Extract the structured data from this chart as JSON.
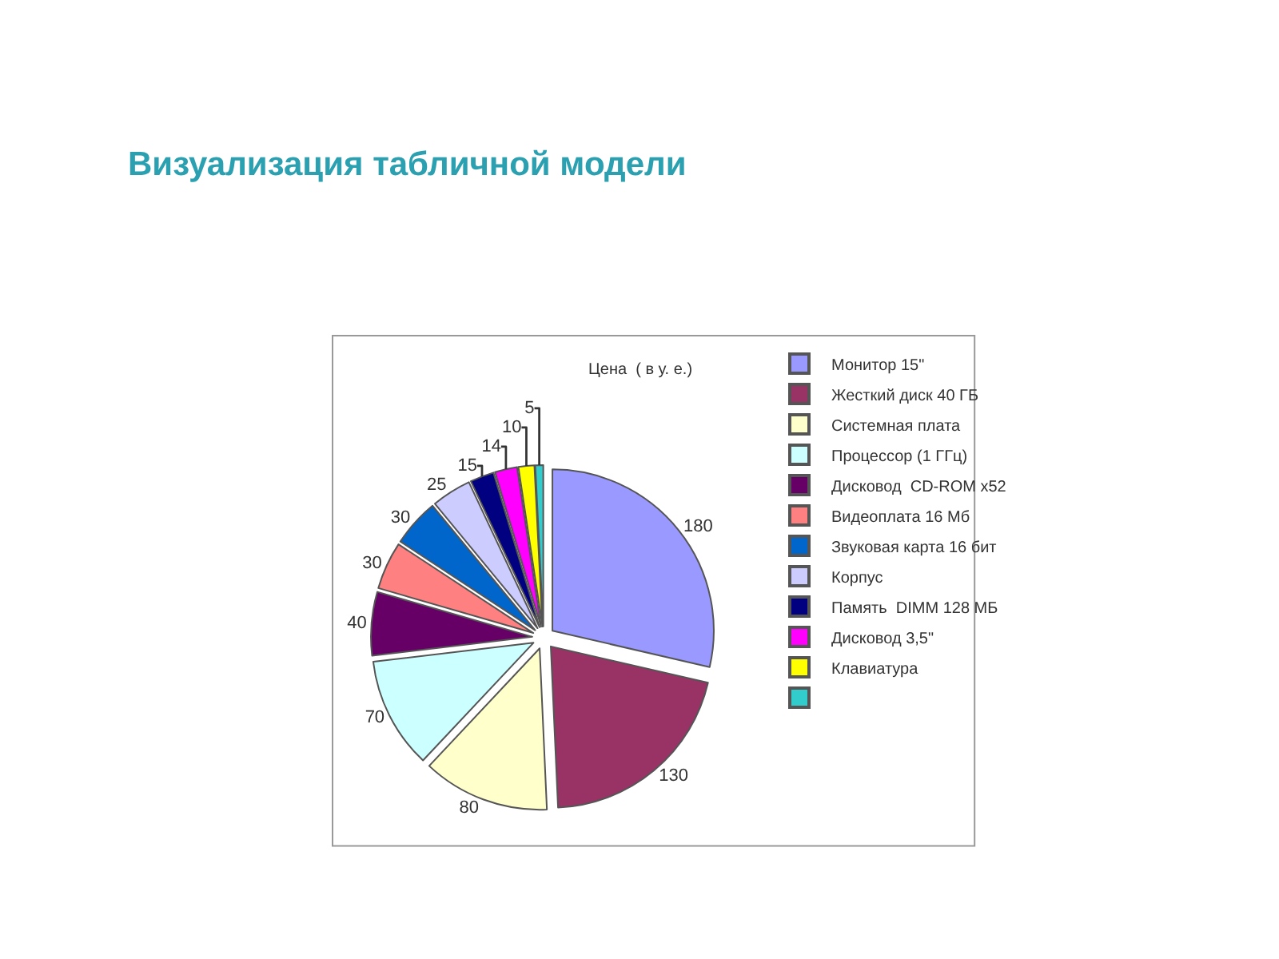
{
  "chart_data": {
    "type": "pie",
    "title": "Визуализация табличной модели",
    "subtitle": "Цена  ( в у. е.)",
    "categories": [
      "Монитор 15\"",
      "Жесткий диск 40 ГБ",
      "Системная плата",
      "Процессор (1 ГГц)",
      "Дисковод  CD-ROM x52",
      "Видеоплата 16 Мб",
      "Звуковая карта 16 бит",
      "Корпус",
      "Память  DIMM 128 МБ",
      "Дисковод 3,5\"",
      "Клавиатура",
      null
    ],
    "values": [
      180,
      130,
      80,
      70,
      40,
      30,
      30,
      25,
      15,
      14,
      10,
      5
    ],
    "colors": [
      "#9999ff",
      "#993366",
      "#ffffcc",
      "#ccffff",
      "#660066",
      "#ff8080",
      "#0066cc",
      "#ccccff",
      "#000080",
      "#ff00ff",
      "#ffff00",
      "#33cccc"
    ],
    "data_labels": true,
    "legend": "right"
  }
}
